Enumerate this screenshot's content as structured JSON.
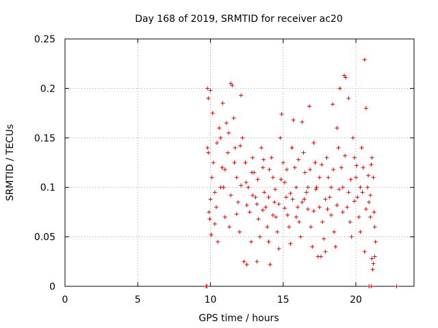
{
  "chart_data": {
    "type": "scatter",
    "title": "Day 168 of 2019, SRMTID for receiver ac20",
    "xlabel": "GPS time / hours",
    "ylabel": "SRMTID / TECUs",
    "xlim": [
      0,
      24
    ],
    "ylim": [
      0,
      0.25
    ],
    "xticks": [
      0,
      5,
      10,
      15,
      20
    ],
    "yticks": [
      0,
      0.05,
      0.1,
      0.15,
      0.2,
      0.25
    ],
    "xtick_labels": [
      "0",
      "5",
      "10",
      "15",
      "20"
    ],
    "ytick_labels": [
      "0",
      "0.05",
      "0.1",
      "0.15",
      "0.2",
      "0.25"
    ],
    "grid": true,
    "marker": "+",
    "series": [
      {
        "name": "SRMTID",
        "color": "#e00000",
        "points": [
          [
            9.7,
            0
          ],
          [
            9.75,
            0
          ],
          [
            20.9,
            0
          ],
          [
            21.05,
            0
          ],
          [
            22.8,
            0
          ],
          [
            9.8,
            0.2
          ],
          [
            9.85,
            0.19
          ],
          [
            10.0,
            0.198
          ],
          [
            11.4,
            0.205
          ],
          [
            11.5,
            0.203
          ],
          [
            12.1,
            0.193
          ],
          [
            19.2,
            0.213
          ],
          [
            19.3,
            0.211
          ],
          [
            18.9,
            0.2
          ],
          [
            19.5,
            0.19
          ],
          [
            20.6,
            0.229
          ],
          [
            20.7,
            0.18
          ],
          [
            16.8,
            0.182
          ],
          [
            18.4,
            0.184
          ],
          [
            14.9,
            0.174
          ],
          [
            15.7,
            0.168
          ],
          [
            16.3,
            0.166
          ],
          [
            13.2,
            0.025
          ],
          [
            14.1,
            0.022
          ],
          [
            12.5,
            0.022
          ],
          [
            12.3,
            0.025
          ],
          [
            17.4,
            0.03
          ],
          [
            17.6,
            0.03
          ],
          [
            21.1,
            0.028
          ],
          [
            21.2,
            0.023
          ],
          [
            21.15,
            0.017
          ],
          [
            20.6,
            0.035
          ],
          [
            21.3,
            0.03
          ],
          [
            9.8,
            0.14
          ],
          [
            9.85,
            0.135
          ],
          [
            9.9,
            0.075
          ],
          [
            9.95,
            0.068
          ],
          [
            10.05,
            0.052
          ],
          [
            10.1,
            0.11
          ],
          [
            10.2,
            0.125
          ],
          [
            10.3,
            0.095
          ],
          [
            10.4,
            0.08
          ],
          [
            10.5,
            0.045
          ],
          [
            10.6,
            0.16
          ],
          [
            10.7,
            0.15
          ],
          [
            10.8,
            0.12
          ],
          [
            10.9,
            0.1
          ],
          [
            11.0,
            0.07
          ],
          [
            11.1,
            0.165
          ],
          [
            11.2,
            0.135
          ],
          [
            11.3,
            0.06
          ],
          [
            11.6,
            0.17
          ],
          [
            11.7,
            0.14
          ],
          [
            11.8,
            0.11
          ],
          [
            11.9,
            0.085
          ],
          [
            12.0,
            0.055
          ],
          [
            12.2,
            0.15
          ],
          [
            12.4,
            0.125
          ],
          [
            12.6,
            0.1
          ],
          [
            12.7,
            0.075
          ],
          [
            12.8,
            0.045
          ],
          [
            12.9,
            0.13
          ],
          [
            13.0,
            0.115
          ],
          [
            13.1,
            0.09
          ],
          [
            13.3,
            0.068
          ],
          [
            13.4,
            0.05
          ],
          [
            13.5,
            0.14
          ],
          [
            13.6,
            0.12
          ],
          [
            13.7,
            0.095
          ],
          [
            13.8,
            0.08
          ],
          [
            13.9,
            0.06
          ],
          [
            14.0,
            0.045
          ],
          [
            14.2,
            0.13
          ],
          [
            14.3,
            0.11
          ],
          [
            14.4,
            0.085
          ],
          [
            14.5,
            0.07
          ],
          [
            14.6,
            0.055
          ],
          [
            14.7,
            0.038
          ],
          [
            14.8,
            0.15
          ],
          [
            15.0,
            0.125
          ],
          [
            15.1,
            0.105
          ],
          [
            15.2,
            0.09
          ],
          [
            15.3,
            0.072
          ],
          [
            15.4,
            0.06
          ],
          [
            15.5,
            0.043
          ],
          [
            15.6,
            0.14
          ],
          [
            15.8,
            0.12
          ],
          [
            15.9,
            0.1
          ],
          [
            16.0,
            0.08
          ],
          [
            16.1,
            0.065
          ],
          [
            16.2,
            0.05
          ],
          [
            16.4,
            0.135
          ],
          [
            16.5,
            0.115
          ],
          [
            16.6,
            0.095
          ],
          [
            16.7,
            0.078
          ],
          [
            16.9,
            0.06
          ],
          [
            17.0,
            0.04
          ],
          [
            17.1,
            0.145
          ],
          [
            17.2,
            0.125
          ],
          [
            17.3,
            0.1
          ],
          [
            17.5,
            0.08
          ],
          [
            17.7,
            0.065
          ],
          [
            17.8,
            0.048
          ],
          [
            17.9,
            0.035
          ],
          [
            18.0,
            0.13
          ],
          [
            18.1,
            0.11
          ],
          [
            18.2,
            0.09
          ],
          [
            18.3,
            0.072
          ],
          [
            18.5,
            0.055
          ],
          [
            18.6,
            0.04
          ],
          [
            18.7,
            0.16
          ],
          [
            18.8,
            0.14
          ],
          [
            19.0,
            0.12
          ],
          [
            19.1,
            0.1
          ],
          [
            19.4,
            0.08
          ],
          [
            19.6,
            0.065
          ],
          [
            19.7,
            0.05
          ],
          [
            19.8,
            0.15
          ],
          [
            19.9,
            0.13
          ],
          [
            20.0,
            0.11
          ],
          [
            20.1,
            0.09
          ],
          [
            20.2,
            0.07
          ],
          [
            20.3,
            0.055
          ],
          [
            20.4,
            0.14
          ],
          [
            20.5,
            0.12
          ],
          [
            20.8,
            0.1
          ],
          [
            20.9,
            0.085
          ],
          [
            21.0,
            0.07
          ],
          [
            21.1,
            0.13
          ],
          [
            21.2,
            0.11
          ],
          [
            21.25,
            0.075
          ],
          [
            21.3,
            0.06
          ],
          [
            21.35,
            0.045
          ],
          [
            10.0,
            0.088
          ],
          [
            10.3,
            0.063
          ],
          [
            10.7,
            0.1
          ],
          [
            11.0,
            0.118
          ],
          [
            11.4,
            0.092
          ],
          [
            11.8,
            0.073
          ],
          [
            12.1,
            0.102
          ],
          [
            12.5,
            0.082
          ],
          [
            12.9,
            0.092
          ],
          [
            13.2,
            0.083
          ],
          [
            13.6,
            0.077
          ],
          [
            14.0,
            0.09
          ],
          [
            14.3,
            0.072
          ],
          [
            14.7,
            0.083
          ],
          [
            15.1,
            0.079
          ],
          [
            15.5,
            0.094
          ],
          [
            15.9,
            0.07
          ],
          [
            16.3,
            0.085
          ],
          [
            16.7,
            0.1
          ],
          [
            17.1,
            0.076
          ],
          [
            17.5,
            0.11
          ],
          [
            17.9,
            0.088
          ],
          [
            18.3,
            0.1
          ],
          [
            18.7,
            0.082
          ],
          [
            19.1,
            0.075
          ],
          [
            19.5,
            0.095
          ],
          [
            19.9,
            0.086
          ],
          [
            20.3,
            0.1
          ],
          [
            20.7,
            0.078
          ],
          [
            21.0,
            0.092
          ],
          [
            10.15,
            0.175
          ],
          [
            10.45,
            0.145
          ],
          [
            10.85,
            0.185
          ],
          [
            11.25,
            0.155
          ],
          [
            11.65,
            0.125
          ],
          [
            12.05,
            0.142
          ],
          [
            12.45,
            0.105
          ],
          [
            12.85,
            0.115
          ],
          [
            13.25,
            0.108
          ],
          [
            13.65,
            0.128
          ],
          [
            14.05,
            0.118
          ],
          [
            14.45,
            0.098
          ],
          [
            14.85,
            0.108
          ],
          [
            15.25,
            0.118
          ],
          [
            15.65,
            0.088
          ],
          [
            16.05,
            0.128
          ],
          [
            16.45,
            0.088
          ],
          [
            16.85,
            0.118
          ],
          [
            17.25,
            0.098
          ],
          [
            17.65,
            0.123
          ],
          [
            18.05,
            0.078
          ],
          [
            18.45,
            0.118
          ],
          [
            18.85,
            0.098
          ],
          [
            19.25,
            0.132
          ],
          [
            19.65,
            0.108
          ],
          [
            20.05,
            0.122
          ],
          [
            20.45,
            0.095
          ],
          [
            20.85,
            0.112
          ],
          [
            21.05,
            0.123
          ]
        ]
      }
    ]
  }
}
